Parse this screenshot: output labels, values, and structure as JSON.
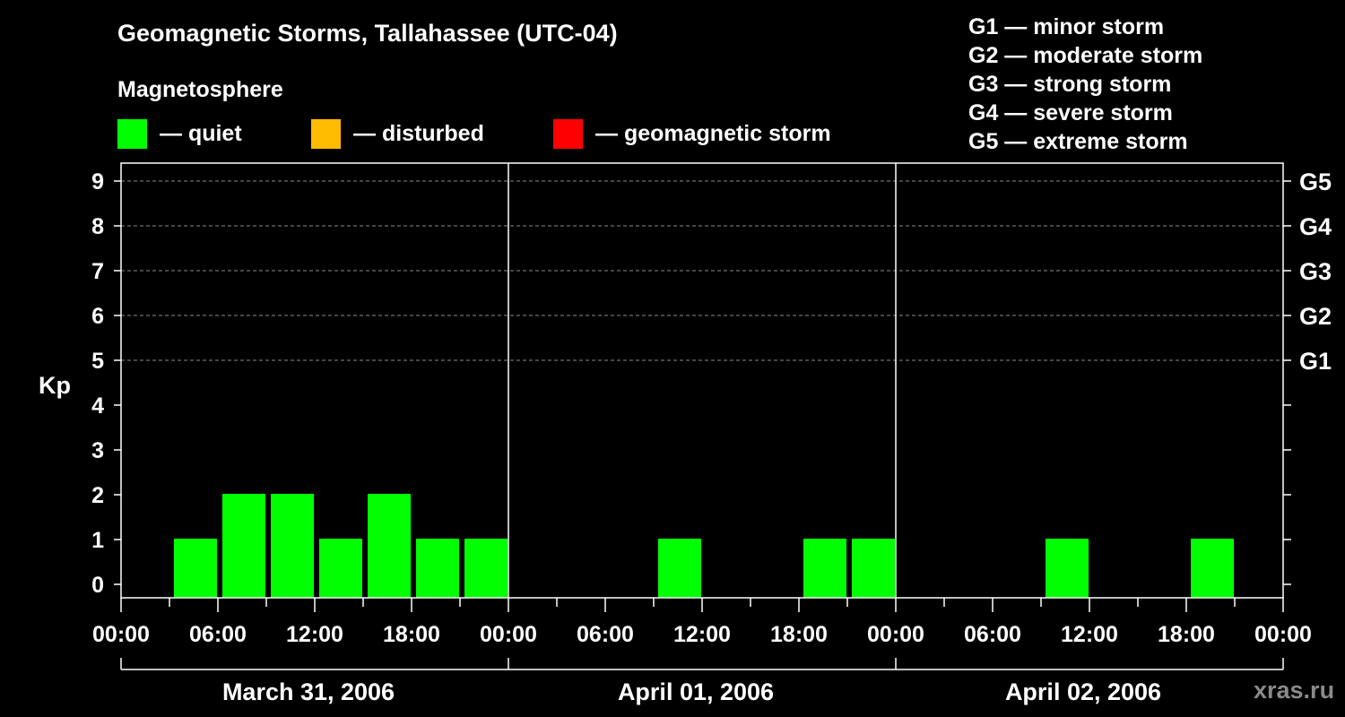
{
  "header": {
    "title": "Geomagnetic Storms, Tallahassee (UTC-04)",
    "magnetosphere_title": "Magnetosphere"
  },
  "legend": [
    {
      "label": "— quiet",
      "color": "#00ff00"
    },
    {
      "label": "— disturbed",
      "color": "#ffbb00"
    },
    {
      "label": "— geomagnetic storm",
      "color": "#ff0000"
    }
  ],
  "storm_scale": [
    "G1 — minor storm",
    "G2 — moderate storm",
    "G3 — strong storm",
    "G4 — severe storm",
    "G5 — extreme storm"
  ],
  "brand": "xras.ru",
  "chart_data": {
    "type": "bar",
    "ylabel": "Kp",
    "ylim": [
      0,
      9
    ],
    "y_ticks": [
      "0",
      "1",
      "2",
      "3",
      "4",
      "5",
      "6",
      "7",
      "8",
      "9"
    ],
    "right_axis_labels": [
      {
        "kp": 5,
        "label": "G1"
      },
      {
        "kp": 6,
        "label": "G2"
      },
      {
        "kp": 7,
        "label": "G3"
      },
      {
        "kp": 8,
        "label": "G4"
      },
      {
        "kp": 9,
        "label": "G5"
      }
    ],
    "grid_dashed_at": [
      5,
      6,
      7,
      8,
      9
    ],
    "x_tick_labels": [
      "00:00",
      "06:00",
      "12:00",
      "18:00",
      "00:00",
      "06:00",
      "12:00",
      "18:00",
      "00:00",
      "06:00",
      "12:00",
      "18:00",
      "00:00"
    ],
    "days": [
      {
        "label": "March 31, 2006",
        "values": [
          null,
          1,
          2,
          2,
          1,
          2,
          1,
          1
        ]
      },
      {
        "label": "April 01, 2006",
        "values": [
          null,
          null,
          null,
          1,
          null,
          null,
          1,
          1
        ]
      },
      {
        "label": "April 02, 2006",
        "values": [
          null,
          null,
          null,
          1,
          null,
          null,
          1,
          null
        ]
      }
    ],
    "bar_color": "#00ff00"
  }
}
